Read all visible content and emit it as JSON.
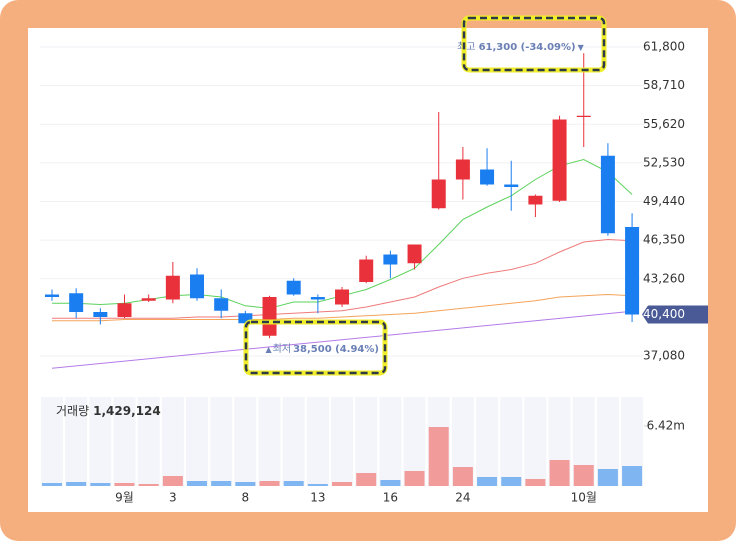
{
  "chart_data": {
    "type": "candlestick",
    "categories": [
      null,
      null,
      null,
      "9월",
      null,
      "3",
      null,
      null,
      "8",
      null,
      null,
      "13",
      null,
      null,
      "16",
      null,
      null,
      "24",
      null,
      null,
      null,
      null,
      "10월",
      null,
      null
    ],
    "open": [
      42000,
      42100,
      40600,
      40200,
      41500,
      41600,
      43600,
      41700,
      40500,
      38700,
      43100,
      41800,
      41200,
      43000,
      45200,
      44500,
      48900,
      51200,
      52000,
      50800,
      49200,
      49500,
      56200,
      53100,
      47400
    ],
    "high": [
      42400,
      42500,
      40900,
      42000,
      42000,
      44600,
      44100,
      42400,
      40700,
      41900,
      43300,
      42000,
      42600,
      45100,
      45500,
      46000,
      56600,
      53800,
      53700,
      52700,
      50000,
      56300,
      61300,
      54100,
      48500
    ],
    "low": [
      41500,
      40100,
      39600,
      40100,
      41400,
      41300,
      41500,
      40100,
      39500,
      38500,
      41900,
      40500,
      41000,
      42900,
      43300,
      44000,
      48800,
      49600,
      50700,
      48700,
      48200,
      49400,
      53800,
      46700,
      39800
    ],
    "close": [
      41800,
      40600,
      40200,
      41300,
      41700,
      43500,
      41700,
      40700,
      39700,
      41800,
      42000,
      41600,
      42400,
      44800,
      44400,
      46000,
      51200,
      52800,
      50800,
      50600,
      49900,
      56000,
      56300,
      46900,
      40400
    ],
    "up_color": "#e8313a",
    "down_color": "#1a7ef0",
    "moving_averages": [
      {
        "color": "#5bd25b",
        "values": [
          41300,
          41300,
          41200,
          41300,
          41600,
          41900,
          42000,
          41800,
          41100,
          40900,
          41400,
          41400,
          41900,
          42400,
          43200,
          44100,
          46000,
          48000,
          49000,
          49900,
          51200,
          52300,
          52800,
          51800,
          50000
        ]
      },
      {
        "color": "#f07a7a",
        "values": [
          40100,
          40100,
          40100,
          40100,
          40100,
          40100,
          40200,
          40200,
          40300,
          40400,
          40500,
          40600,
          40700,
          41000,
          41400,
          41800,
          42600,
          43300,
          43700,
          44000,
          44500,
          45400,
          46200,
          46400,
          46300
        ]
      },
      {
        "color": "#f5a45a",
        "values": [
          39900,
          39900,
          39900,
          40000,
          40000,
          40000,
          40000,
          40000,
          40000,
          40000,
          40100,
          40100,
          40200,
          40300,
          40400,
          40500,
          40700,
          40900,
          41100,
          41300,
          41500,
          41800,
          41900,
          42000,
          41900
        ]
      },
      {
        "color": "#b57be8",
        "values": [
          36100,
          36290,
          36480,
          36670,
          36860,
          37050,
          37240,
          37430,
          37620,
          37810,
          38000,
          38190,
          38380,
          38570,
          38760,
          38950,
          39140,
          39330,
          39520,
          39710,
          39900,
          40090,
          40280,
          40470,
          40660
        ]
      }
    ],
    "ylim": [
      34760,
      63320
    ],
    "yticks": [
      {
        "value": 61800,
        "label": "61,800"
      },
      {
        "value": 58710,
        "label": "58,710"
      },
      {
        "value": 55620,
        "label": "55,620"
      },
      {
        "value": 52530,
        "label": "52,530"
      },
      {
        "value": 49440,
        "label": "49,440"
      },
      {
        "value": 46350,
        "label": "46,350"
      },
      {
        "value": 43260,
        "label": "43,260"
      },
      {
        "value": 37080,
        "label": "37,080"
      }
    ],
    "last_price": {
      "value": 40400,
      "label": "40,400"
    },
    "high_annotation": {
      "label": "최고",
      "value": "61,300 (-34.09%)",
      "marker": "▼"
    },
    "low_annotation": {
      "marker": "▲",
      "label": "최저",
      "value": "38,500 (4.94%)"
    },
    "volume": {
      "label": "거래량",
      "readout": "1,429,124",
      "up_color": "#f29b9b",
      "down_color": "#7fb5f0",
      "values": [
        321000,
        428000,
        321000,
        321000,
        214000,
        1070000,
        535000,
        535000,
        428000,
        535000,
        535000,
        214000,
        428000,
        1391000,
        642000,
        1605000,
        6313000,
        2033000,
        963000,
        963000,
        749000,
        2782000,
        2247000,
        1819000,
        2140000
      ],
      "ylim": [
        0,
        9523000
      ],
      "yticks": [
        {
          "value": 6420000,
          "label": "6.42m"
        }
      ]
    }
  }
}
